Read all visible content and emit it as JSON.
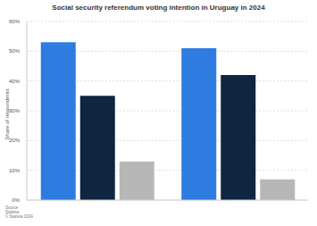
{
  "chart_data": {
    "type": "bar",
    "title": "Social security referendum voting intention in Uruguay in 2024",
    "y_label": "Share of respondents",
    "categories": [
      null,
      null
    ],
    "series": [
      {
        "color": "#2e7ce0",
        "values": [
          53,
          51
        ]
      },
      {
        "color": "#0f2540",
        "values": [
          35,
          42
        ]
      },
      {
        "color": "#b7b7b7",
        "values": [
          13,
          7
        ]
      }
    ],
    "ylim": [
      0,
      60
    ],
    "yticks": [
      {
        "value": 0,
        "label": "0%"
      },
      {
        "value": 10,
        "label": "10%"
      },
      {
        "value": 20,
        "label": "20%"
      },
      {
        "value": 30,
        "label": "30%"
      },
      {
        "value": 40,
        "label": "40%"
      },
      {
        "value": 50,
        "label": "50%"
      },
      {
        "value": 60,
        "label": "60%"
      }
    ],
    "grid": true,
    "source": [
      "Source",
      "Statista",
      "© Statista 2024"
    ]
  }
}
